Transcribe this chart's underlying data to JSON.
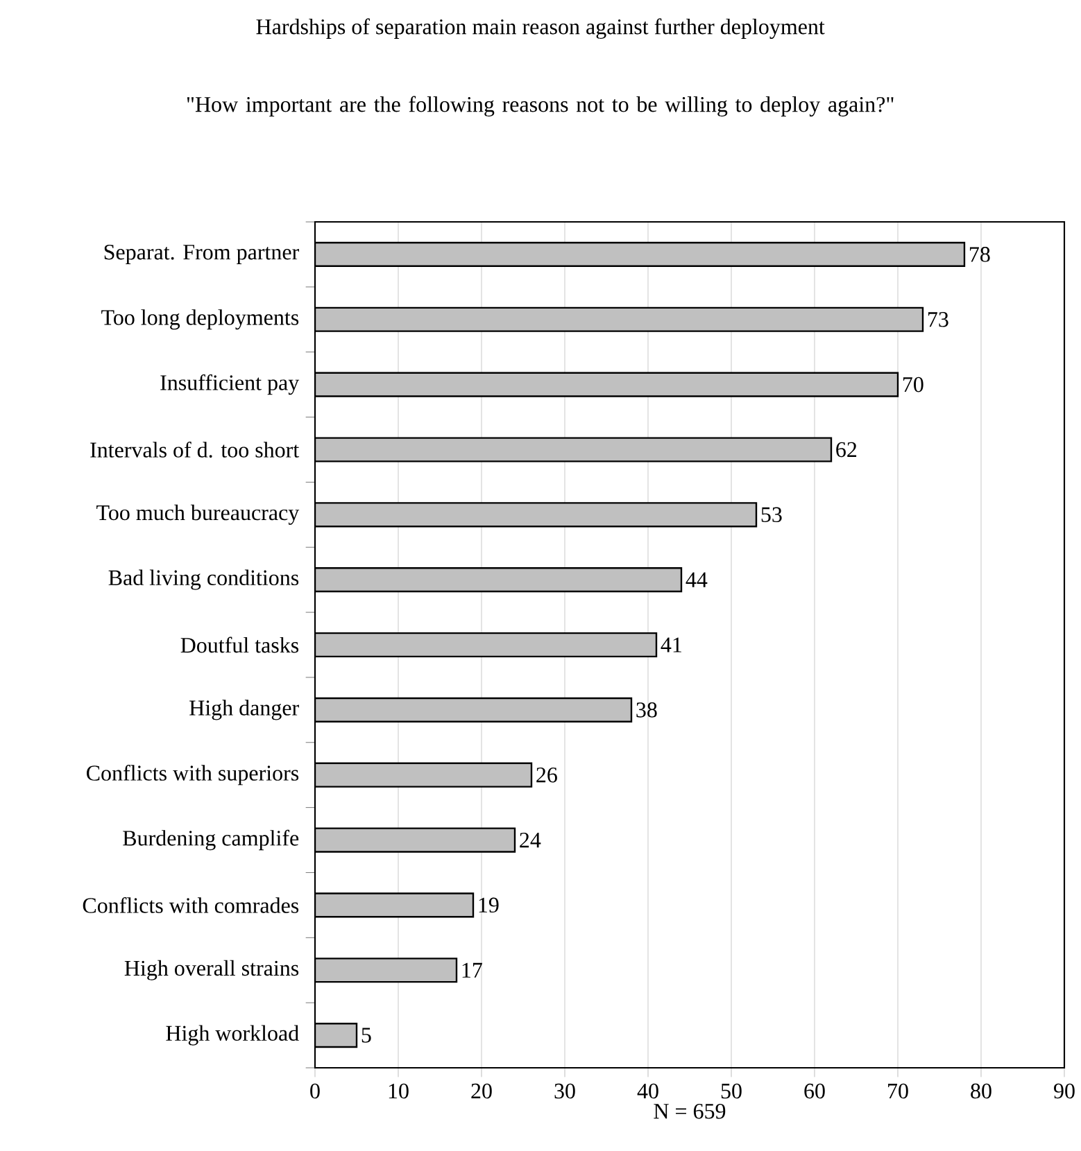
{
  "chart_data": {
    "type": "bar",
    "orientation": "horizontal",
    "title": "Hardships of separation main reason against further deployment",
    "subtitle": "\"How important are the following reasons not to be willing to deploy again?\"",
    "xlabel": "N = 659",
    "categories": [
      "Separat. From partner",
      "Too long deployments",
      "Insufficient pay",
      "Intervals of d. too short",
      "Too much bureaucracy",
      "Bad living conditions",
      "Doutful tasks",
      "High danger",
      "Conflicts with superiors",
      "Burdening camplife",
      "Conflicts with comrades",
      "High overall strains",
      "High workload"
    ],
    "values": [
      78,
      73,
      70,
      62,
      53,
      44,
      41,
      38,
      26,
      24,
      19,
      17,
      5
    ],
    "color": "#c0c0c0",
    "xlim": [
      0,
      90
    ],
    "xticks": [
      0,
      10,
      20,
      30,
      40,
      50,
      60,
      70,
      80,
      90
    ],
    "grid": "x",
    "data_labels": true
  }
}
